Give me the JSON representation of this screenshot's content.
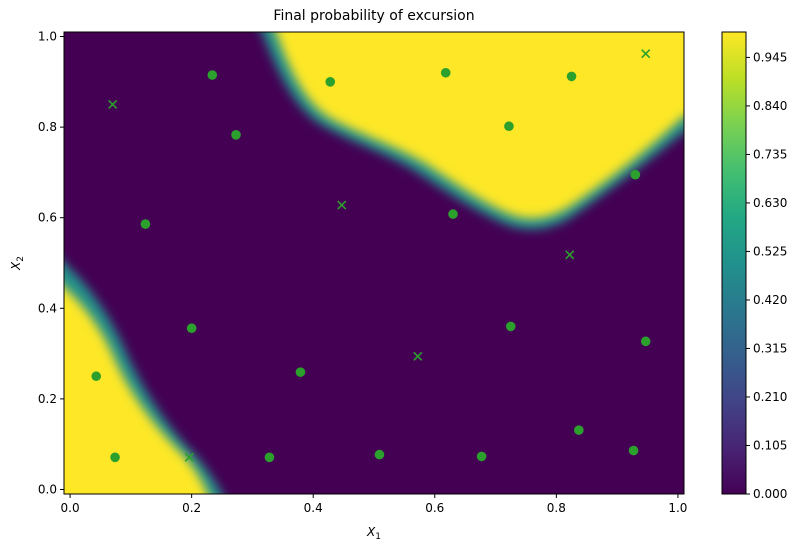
{
  "chart_data": {
    "type": "heatmap",
    "title": "Final probability of excursion",
    "xlabel": "X_1",
    "ylabel": "X_2",
    "xlim": [
      -0.01,
      1.01
    ],
    "ylim": [
      -0.01,
      1.01
    ],
    "xticks": [
      "0.0",
      "0.2",
      "0.4",
      "0.6",
      "0.8",
      "1.0"
    ],
    "yticks": [
      "0.0",
      "0.2",
      "0.4",
      "0.6",
      "0.8",
      "1.0"
    ],
    "colormap": "viridis",
    "colorbar": {
      "range": [
        0.0,
        1.0
      ],
      "ticks": [
        "0.000",
        "0.105",
        "0.210",
        "0.315",
        "0.420",
        "0.525",
        "0.630",
        "0.735",
        "0.840",
        "0.945"
      ]
    },
    "regions": [
      {
        "name": "high-probability-top-right",
        "value": 1.0,
        "description": "Yellow region bounded below by a curve from (0.32,1.0) down to min near (0.77,0.59) rising to (1.01,0.81)"
      },
      {
        "name": "high-probability-bottom-left",
        "value": 1.0,
        "description": "Yellow region bounded by curve from (-0.01,0.5) to (0.23,-0.01)"
      },
      {
        "name": "low-probability",
        "value": 0.0,
        "description": "Dark purple elsewhere"
      }
    ],
    "series": [
      {
        "name": "circles",
        "marker": "o",
        "color": "#2ca02c",
        "points": [
          [
            0.234,
            0.915
          ],
          [
            0.273,
            0.783
          ],
          [
            0.428,
            0.9
          ],
          [
            0.618,
            0.92
          ],
          [
            0.825,
            0.912
          ],
          [
            0.722,
            0.802
          ],
          [
            0.93,
            0.695
          ],
          [
            0.63,
            0.608
          ],
          [
            0.124,
            0.586
          ],
          [
            0.2,
            0.356
          ],
          [
            0.725,
            0.36
          ],
          [
            0.947,
            0.327
          ],
          [
            0.043,
            0.25
          ],
          [
            0.379,
            0.259
          ],
          [
            0.837,
            0.131
          ],
          [
            0.927,
            0.086
          ],
          [
            0.074,
            0.071
          ],
          [
            0.328,
            0.071
          ],
          [
            0.509,
            0.077
          ],
          [
            0.677,
            0.073
          ]
        ]
      },
      {
        "name": "crosses",
        "marker": "x",
        "color": "#2ca02c",
        "points": [
          [
            0.07,
            0.85
          ],
          [
            0.947,
            0.962
          ],
          [
            0.447,
            0.628
          ],
          [
            0.822,
            0.518
          ],
          [
            0.572,
            0.294
          ],
          [
            0.196,
            0.071
          ]
        ]
      }
    ]
  }
}
